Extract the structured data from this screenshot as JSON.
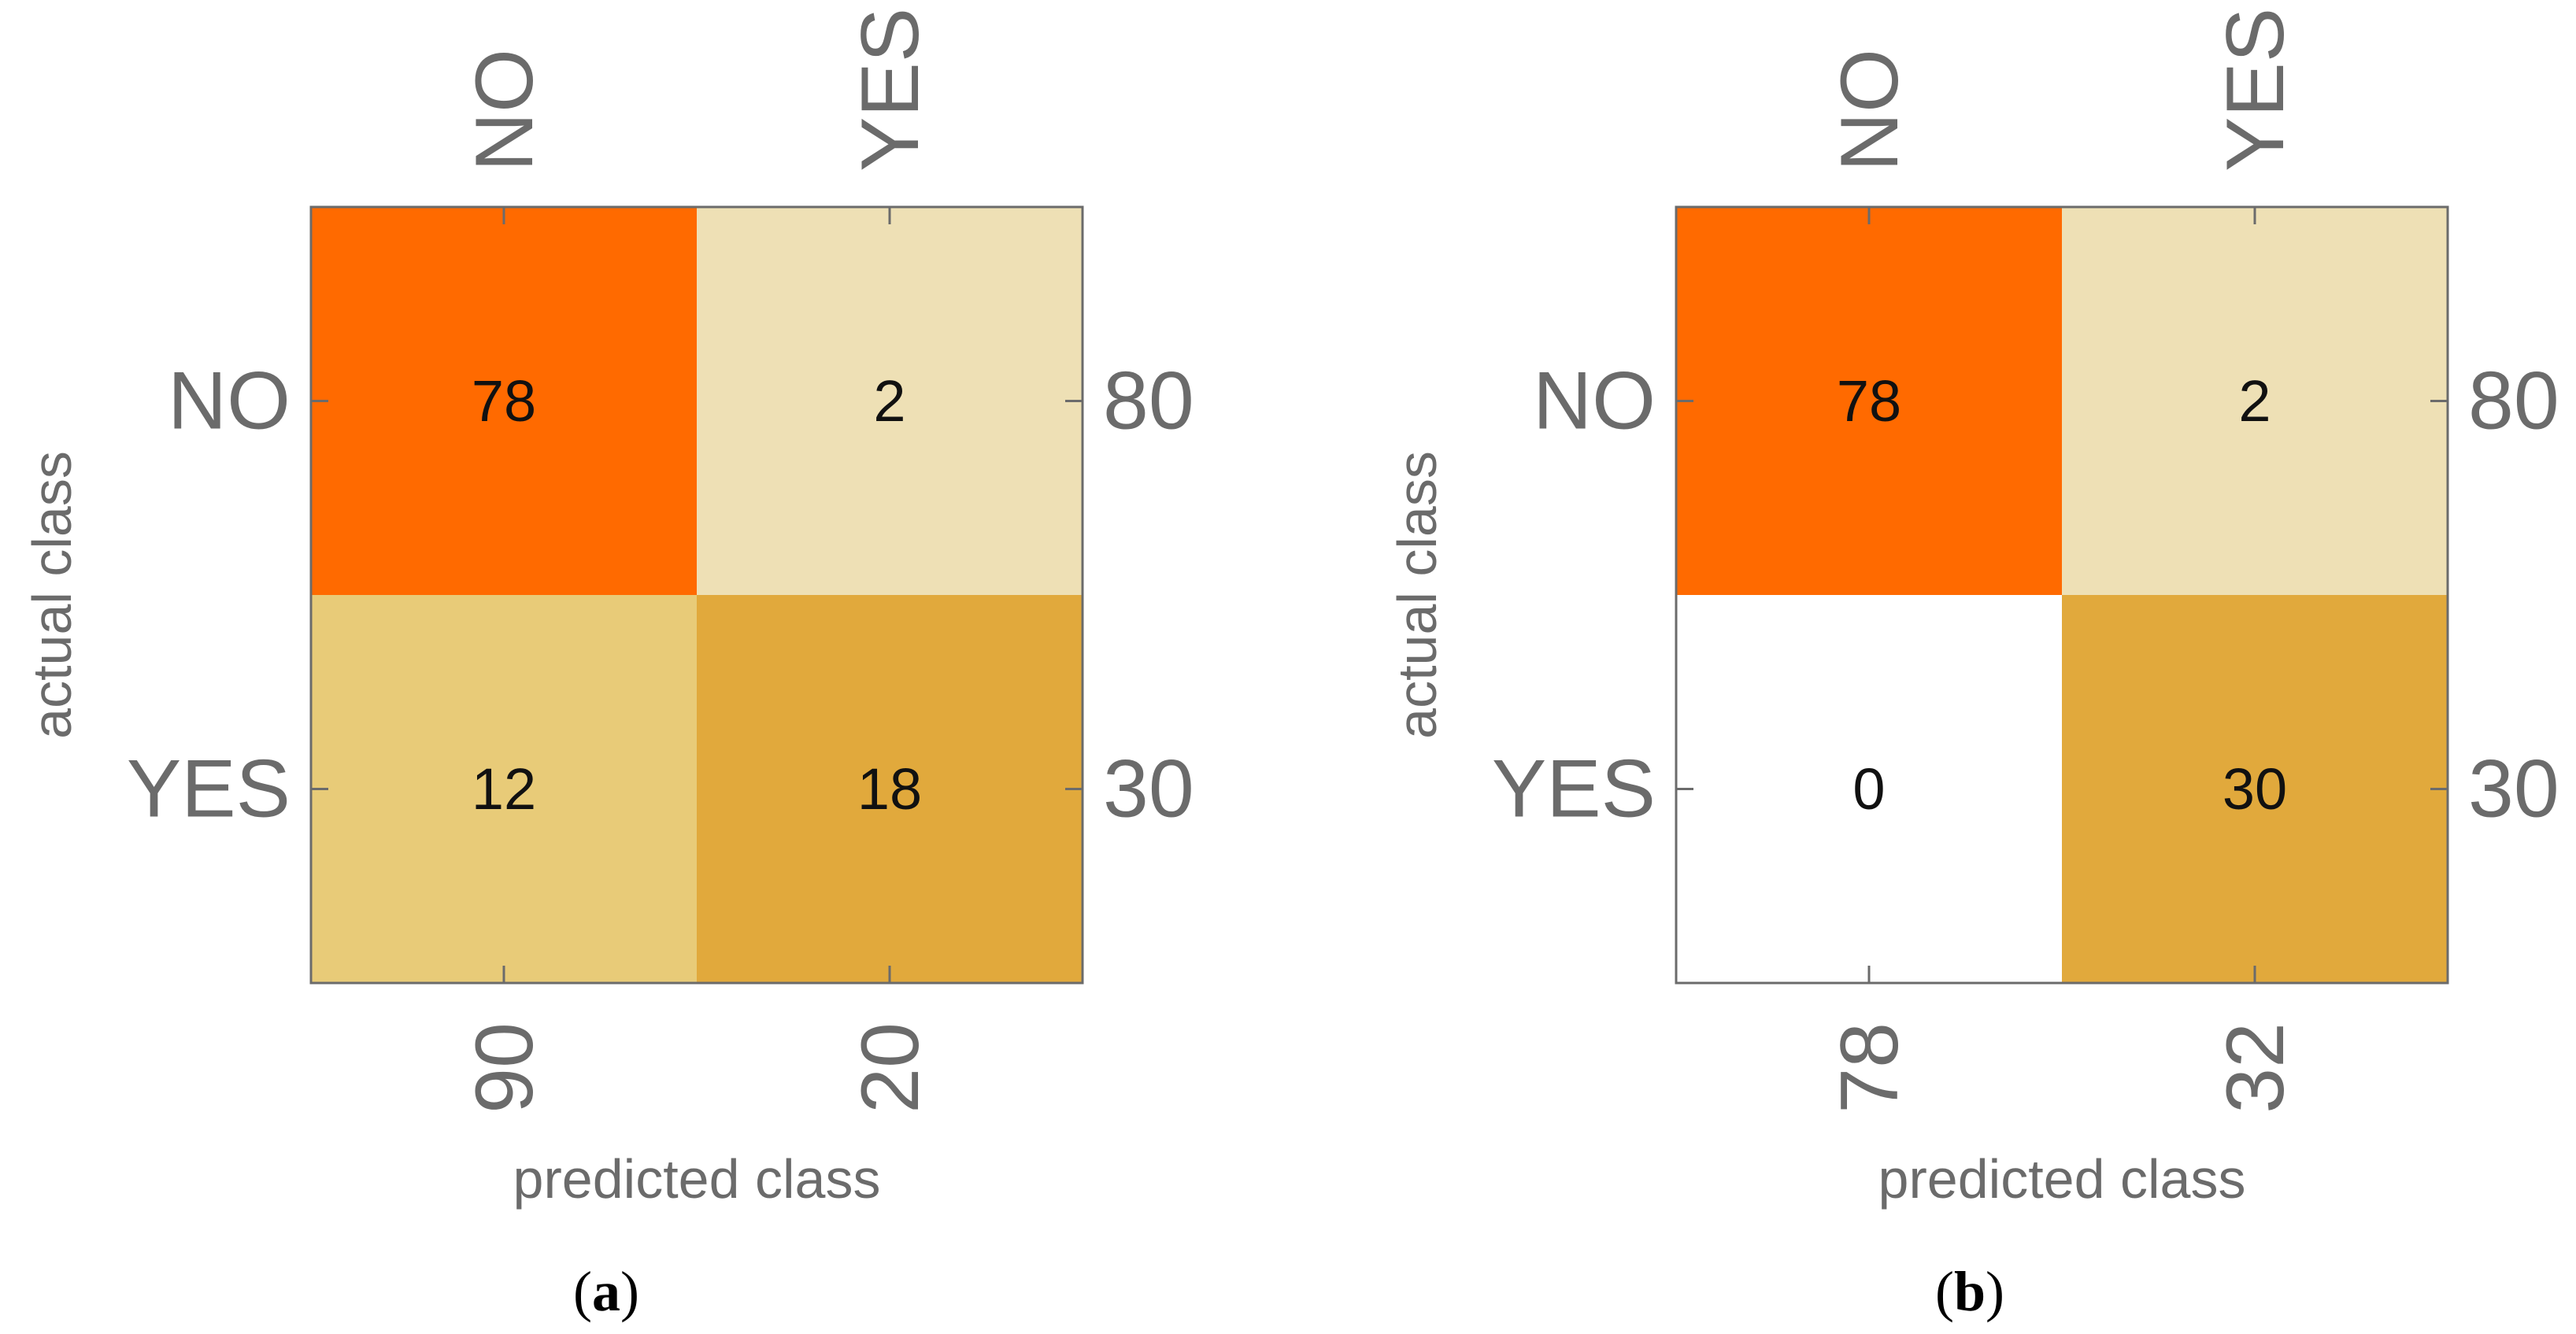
{
  "colors": {
    "frame": "#6b6b6b",
    "tick_text": "#6b6b6b",
    "cell_text": "#111111",
    "scale": {
      "0": "#ffffff",
      "2": "#eee0b5",
      "12": "#e8cb78",
      "18": "#e1a93c",
      "30": "#e1a93c",
      "78": "#ff6a00"
    }
  },
  "chart_data": [
    {
      "type": "heatmap",
      "panel_label": "a",
      "xlabel": "predicted class",
      "ylabel": "actual class",
      "x_categories": [
        "NO",
        "YES"
      ],
      "y_categories": [
        "NO",
        "YES"
      ],
      "values": [
        [
          78,
          2
        ],
        [
          12,
          18
        ]
      ],
      "row_totals": [
        80,
        30
      ],
      "column_totals": [
        90,
        20
      ]
    },
    {
      "type": "heatmap",
      "panel_label": "b",
      "xlabel": "predicted class",
      "ylabel": "actual class",
      "x_categories": [
        "NO",
        "YES"
      ],
      "y_categories": [
        "NO",
        "YES"
      ],
      "values": [
        [
          78,
          2
        ],
        [
          0,
          30
        ]
      ],
      "row_totals": [
        80,
        30
      ],
      "column_totals": [
        78,
        32
      ]
    }
  ]
}
